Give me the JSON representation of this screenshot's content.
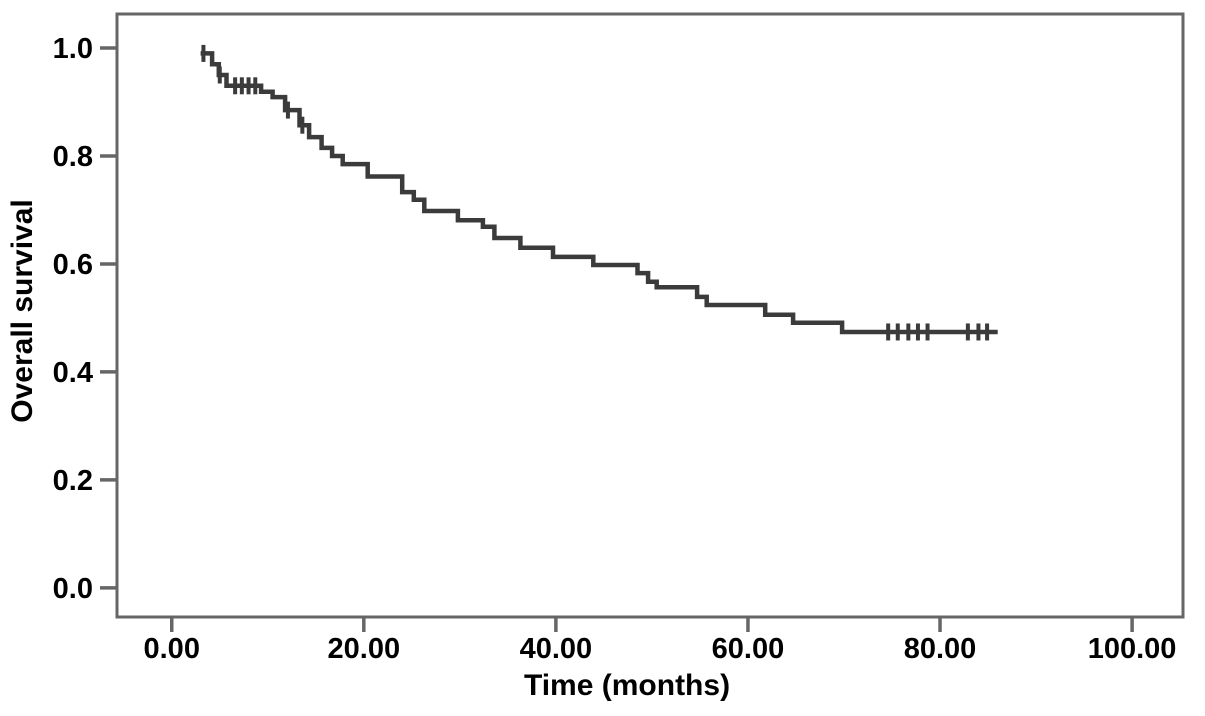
{
  "chart_data": {
    "type": "line",
    "subtype": "kaplan-meier-step-function",
    "title": "",
    "xlabel": "Time (months)",
    "ylabel": "Overall survival",
    "xlim": [
      -5.7,
      105.3
    ],
    "ylim": [
      -0.054,
      1.063
    ],
    "x_ticks": [
      0,
      20,
      40,
      60,
      80,
      100
    ],
    "x_tick_labels": [
      "0.00",
      "20.00",
      "40.00",
      "60.00",
      "80.00",
      "100.00"
    ],
    "y_ticks": [
      0.0,
      0.2,
      0.4,
      0.6,
      0.8,
      1.0
    ],
    "y_tick_labels": [
      "0.0",
      "0.2",
      "0.4",
      "0.6",
      "0.8",
      "1.0"
    ],
    "grid": false,
    "legend": "none",
    "series": [
      {
        "name": "Overall survival",
        "type": "step-post",
        "points": [
          [
            3.0,
            0.99
          ],
          [
            4.2,
            0.97
          ],
          [
            4.9,
            0.95
          ],
          [
            5.7,
            0.93
          ],
          [
            9.3,
            0.919
          ],
          [
            10.5,
            0.909
          ],
          [
            11.8,
            0.885
          ],
          [
            13.3,
            0.857
          ],
          [
            14.3,
            0.835
          ],
          [
            15.6,
            0.815
          ],
          [
            16.7,
            0.8
          ],
          [
            17.8,
            0.785
          ],
          [
            20.4,
            0.762
          ],
          [
            24.0,
            0.733
          ],
          [
            25.2,
            0.719
          ],
          [
            26.3,
            0.698
          ],
          [
            29.8,
            0.681
          ],
          [
            32.4,
            0.669
          ],
          [
            33.6,
            0.648
          ],
          [
            36.3,
            0.63
          ],
          [
            39.7,
            0.613
          ],
          [
            43.9,
            0.598
          ],
          [
            48.5,
            0.583
          ],
          [
            49.6,
            0.567
          ],
          [
            50.5,
            0.557
          ],
          [
            54.7,
            0.539
          ],
          [
            55.7,
            0.524
          ],
          [
            61.8,
            0.506
          ],
          [
            64.7,
            0.491
          ],
          [
            69.8,
            0.474
          ],
          [
            86.0,
            0.474
          ]
        ],
        "censor_marks": [
          [
            3.3,
            0.99
          ],
          [
            5.0,
            0.95
          ],
          [
            6.6,
            0.93
          ],
          [
            7.3,
            0.93
          ],
          [
            8.0,
            0.93
          ],
          [
            8.7,
            0.93
          ],
          [
            12.1,
            0.885
          ],
          [
            13.6,
            0.857
          ],
          [
            74.6,
            0.474
          ],
          [
            75.6,
            0.474
          ],
          [
            76.7,
            0.474
          ],
          [
            77.7,
            0.474
          ],
          [
            78.7,
            0.474
          ],
          [
            82.9,
            0.474
          ],
          [
            84.0,
            0.474
          ],
          [
            84.9,
            0.474
          ]
        ]
      }
    ],
    "colors": {
      "curve": "#3b3b3b",
      "frame": "#666666",
      "text": "#000000",
      "background": "#ffffff"
    }
  }
}
